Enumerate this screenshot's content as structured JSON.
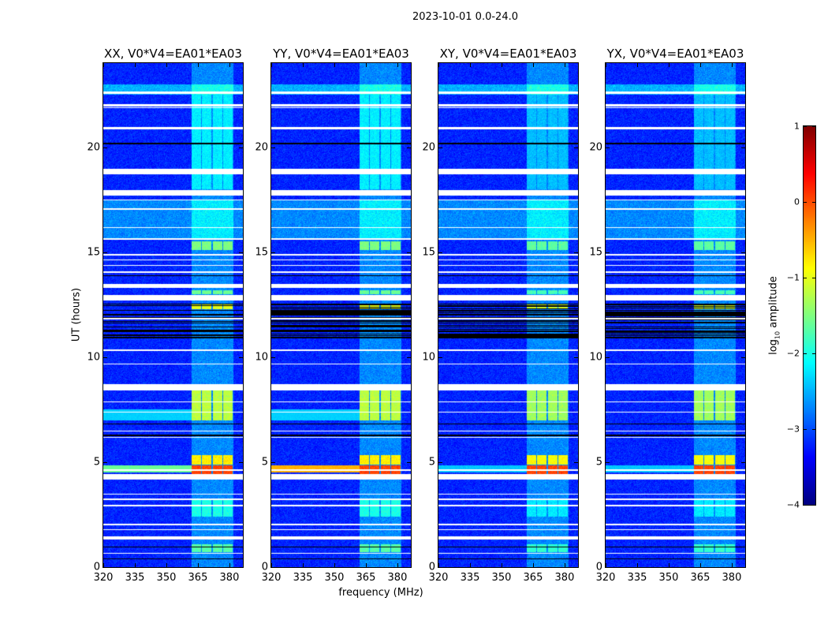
{
  "suptitle": "2023-10-01 0.0-24.0",
  "chart_data": {
    "type": "heatmap",
    "xlabel": "frequency (MHz)",
    "ylabel": "UT (hours)",
    "xlim": [
      320,
      386.4
    ],
    "ylim": [
      0,
      24
    ],
    "xticks": [
      "320",
      "335",
      "350",
      "365",
      "380"
    ],
    "yticks": [
      "0",
      "5",
      "10",
      "15",
      "20"
    ],
    "colormap": "jet",
    "colorbar": {
      "label_main": "log",
      "label_sub": "10",
      "label_rest": " amplitude",
      "range": [
        -4,
        1
      ],
      "ticks": [
        "1",
        "0",
        "−1",
        "−2",
        "−3",
        "−4"
      ]
    },
    "background_level": -3.2,
    "rfi_channels_mhz": [
      [
        362,
        366.5
      ],
      [
        367,
        371.5
      ],
      [
        372,
        376.5
      ],
      [
        377,
        381.5
      ]
    ],
    "panels": [
      {
        "title": "XX, V0*V4=EA01*EA03",
        "teal_band": true,
        "line_445": -1.6,
        "scale": 1.0
      },
      {
        "title": "YY, V0*V4=EA01*EA03",
        "teal_band": true,
        "line_445": -0.5,
        "scale": 1.0
      },
      {
        "title": "XY, V0*V4=EA01*EA03",
        "teal_band": false,
        "line_445": -2.4,
        "scale": 0.9
      },
      {
        "title": "YX, V0*V4=EA01*EA03",
        "teal_band": false,
        "line_445": -2.4,
        "scale": 0.9
      }
    ],
    "rfi_blocks_hours": [
      {
        "t": [
          4.4,
          4.85
        ],
        "level": 0.05
      },
      {
        "t": [
          4.9,
          5.35
        ],
        "level": -0.8
      },
      {
        "t": [
          7.0,
          8.5
        ],
        "level": -1.2
      },
      {
        "t": [
          12.3,
          12.5
        ],
        "level": -1.0
      },
      {
        "t": [
          13.0,
          13.2
        ],
        "level": -1.6
      },
      {
        "t": [
          15.1,
          15.5
        ],
        "level": -1.5
      },
      {
        "t": [
          0.7,
          1.1
        ],
        "level": -1.7
      },
      {
        "t": [
          2.4,
          3.2
        ],
        "level": -2.0
      },
      {
        "t": [
          18.0,
          22.5
        ],
        "level": -2.2
      }
    ],
    "broadband_bands_hours": [
      {
        "t": [
          22.5,
          23.0
        ],
        "level": -2.5
      },
      {
        "t": [
          15.6,
          17.5
        ],
        "level": -2.7
      }
    ],
    "flagged_rows_hours": [
      [
        22.55,
        22.65
      ],
      [
        21.95,
        22.05
      ],
      [
        21.85,
        21.9
      ],
      [
        20.85,
        20.95
      ],
      [
        18.7,
        18.95
      ],
      [
        17.7,
        17.95
      ],
      [
        17.45,
        17.5
      ],
      [
        17.0,
        17.1
      ],
      [
        16.15,
        16.2
      ],
      [
        15.6,
        15.65
      ],
      [
        14.85,
        14.9
      ],
      [
        14.6,
        14.65
      ],
      [
        14.35,
        14.4
      ],
      [
        14.0,
        14.1
      ],
      [
        13.3,
        13.5
      ],
      [
        12.7,
        12.95
      ],
      [
        11.8,
        11.85
      ],
      [
        10.3,
        10.35
      ],
      [
        9.65,
        9.7
      ],
      [
        8.4,
        8.7
      ],
      [
        7.85,
        7.9
      ],
      [
        7.35,
        7.4
      ],
      [
        6.45,
        6.5
      ],
      [
        6.15,
        6.2
      ],
      [
        4.6,
        4.65
      ],
      [
        4.17,
        4.43
      ],
      [
        3.45,
        3.5
      ],
      [
        3.2,
        3.25
      ],
      [
        2.9,
        2.95
      ],
      [
        2.0,
        2.05
      ],
      [
        1.75,
        1.8
      ],
      [
        1.3,
        1.46
      ],
      [
        0.62,
        0.66
      ]
    ],
    "blank_rows_hours": [
      [
        20.15,
        20.2
      ],
      [
        13.85,
        13.9
      ],
      [
        12.5,
        12.55
      ],
      [
        12.2,
        12.25
      ],
      [
        12.0,
        12.05
      ],
      [
        11.6,
        11.65
      ],
      [
        11.4,
        11.45
      ],
      [
        11.2,
        11.25
      ],
      [
        11.0,
        11.05
      ],
      [
        10.9,
        10.95
      ],
      [
        6.8,
        6.85
      ],
      [
        6.25,
        6.3
      ],
      [
        0.93,
        0.96
      ],
      [
        0.36,
        0.4
      ]
    ]
  }
}
